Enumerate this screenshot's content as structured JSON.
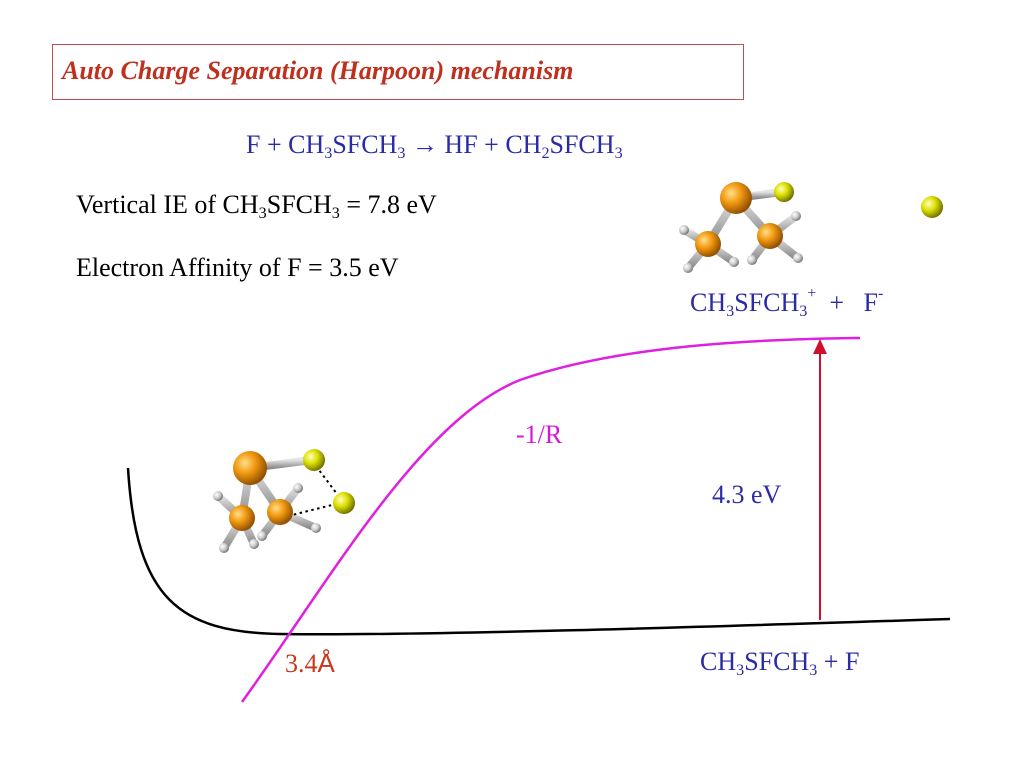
{
  "title": "Auto Charge Separation (Harpoon) mechanism",
  "reaction": {
    "p1": "F + CH",
    "s1": "3",
    "p2": "SFCH",
    "s2": "3",
    "arrow": "→",
    "p3": "HF + CH",
    "s3": "2",
    "p4": "SFCH",
    "s4": "3"
  },
  "ie_line": {
    "p1": "Vertical IE of CH",
    "s1": "3",
    "p2": "SFCH",
    "s2": "3",
    "p3": " = 7.8 eV"
  },
  "ea_line": "Electron Affinity of F = 3.5 eV",
  "products_label": {
    "p1": "CH",
    "s1": "3",
    "p2": "SFCH",
    "s2": "3",
    "sup1": "+",
    "p3": "  +   F",
    "sup2": "-"
  },
  "coulomb_label": "-1/R",
  "gap_label": "4.3 eV",
  "distance_label": {
    "value": "3.4",
    "unit": "Å"
  },
  "reactants_label": {
    "p1": "CH",
    "s1": "3",
    "p2": "SFCH",
    "s2": "3",
    "p3": " + F"
  },
  "colors": {
    "title": "#c0301e",
    "title_border": "#c0504d",
    "equation_text": "#2b2ba6",
    "coulomb_curve": "#e020e0",
    "ground_curve": "#000000",
    "arrow": "#d0102a",
    "sulfur_carbon_atoms": "#e8900a",
    "fluorine_atom": "#d8e000",
    "hydrogen_atoms": "#c8c8c8"
  }
}
